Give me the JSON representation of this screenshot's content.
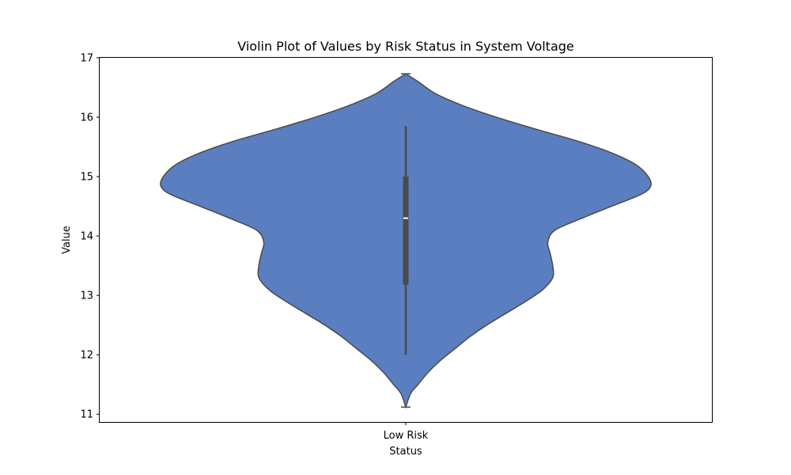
{
  "chart_data": {
    "type": "violin",
    "title": "Violin Plot of Values by Risk Status in System Voltage",
    "xlabel": "Status",
    "ylabel": "Value",
    "categories": [
      "Low Risk"
    ],
    "ylim": [
      10.87,
      17.0
    ],
    "yticks": [
      11,
      12,
      13,
      14,
      15,
      16,
      17
    ],
    "grid": false,
    "colors": {
      "violin_fill": "#5a7ec0",
      "violin_edge": "#4a4a4a",
      "box": "#4a4a4a",
      "median": "#ffffff"
    },
    "violins": [
      {
        "category": "Low Risk",
        "min": 11.12,
        "max": 16.73,
        "density": [
          [
            16.73,
            0.0
          ],
          [
            16.6,
            0.05
          ],
          [
            16.4,
            0.12
          ],
          [
            16.2,
            0.23
          ],
          [
            16.0,
            0.37
          ],
          [
            15.8,
            0.53
          ],
          [
            15.6,
            0.7
          ],
          [
            15.4,
            0.84
          ],
          [
            15.2,
            0.94
          ],
          [
            15.0,
            0.99
          ],
          [
            14.84,
            1.0
          ],
          [
            14.7,
            0.96
          ],
          [
            14.5,
            0.84
          ],
          [
            14.3,
            0.72
          ],
          [
            14.1,
            0.61
          ],
          [
            13.9,
            0.58
          ],
          [
            13.7,
            0.59
          ],
          [
            13.5,
            0.6
          ],
          [
            13.3,
            0.6
          ],
          [
            13.1,
            0.56
          ],
          [
            12.9,
            0.49
          ],
          [
            12.7,
            0.41
          ],
          [
            12.5,
            0.33
          ],
          [
            12.3,
            0.26
          ],
          [
            12.1,
            0.2
          ],
          [
            11.9,
            0.14
          ],
          [
            11.7,
            0.09
          ],
          [
            11.5,
            0.05
          ],
          [
            11.35,
            0.02
          ],
          [
            11.12,
            0.0
          ]
        ],
        "box": {
          "q1": 13.18,
          "median": 14.3,
          "q3": 15.0,
          "whisker_low": 12.0,
          "whisker_high": 15.85
        }
      }
    ]
  }
}
